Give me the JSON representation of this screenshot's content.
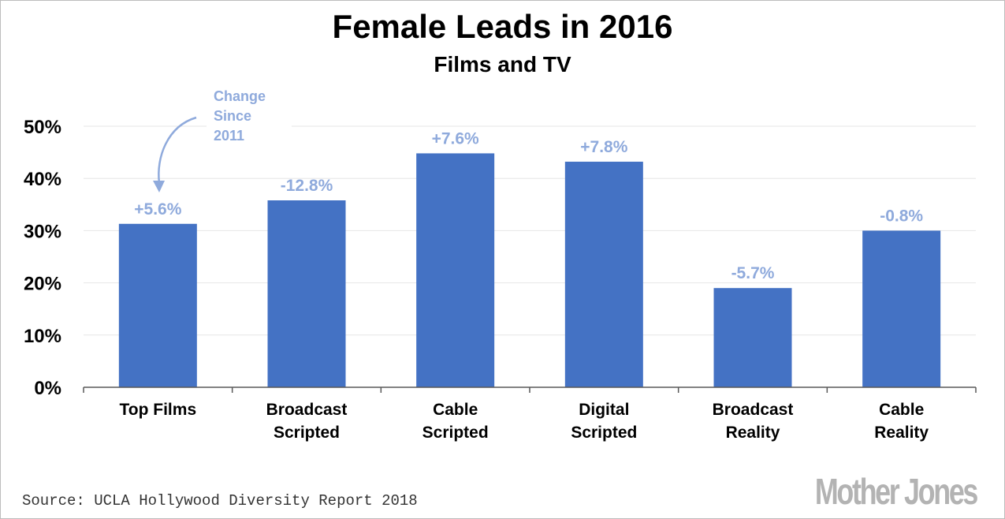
{
  "chart_data": {
    "type": "bar",
    "title": "Female Leads in 2016",
    "subtitle": "Films and TV",
    "categories": [
      [
        "Top Films"
      ],
      [
        "Broadcast",
        "Scripted"
      ],
      [
        "Cable",
        "Scripted"
      ],
      [
        "Digital",
        "Scripted"
      ],
      [
        "Broadcast",
        "Reality"
      ],
      [
        "Cable",
        "Reality"
      ]
    ],
    "values": [
      31.3,
      35.8,
      44.8,
      43.2,
      19.0,
      30.0
    ],
    "data_labels": [
      "+5.6%",
      "-12.8%",
      "+7.6%",
      "+7.8%",
      "-5.7%",
      "-0.8%"
    ],
    "ylim": [
      0,
      50
    ],
    "yticks": [
      0,
      10,
      20,
      30,
      40,
      50
    ],
    "ytick_labels": [
      "0%",
      "10%",
      "20%",
      "30%",
      "40%",
      "50%"
    ],
    "grid": true,
    "annotation": [
      "Change",
      "Since",
      "2011"
    ],
    "colors": {
      "bar": "#4472c4",
      "label": "#8faadc",
      "grid": "#e6e6e6",
      "axis": "#595959"
    }
  },
  "source": "Source: UCLA Hollywood Diversity Report 2018",
  "logo": "Mother Jones"
}
